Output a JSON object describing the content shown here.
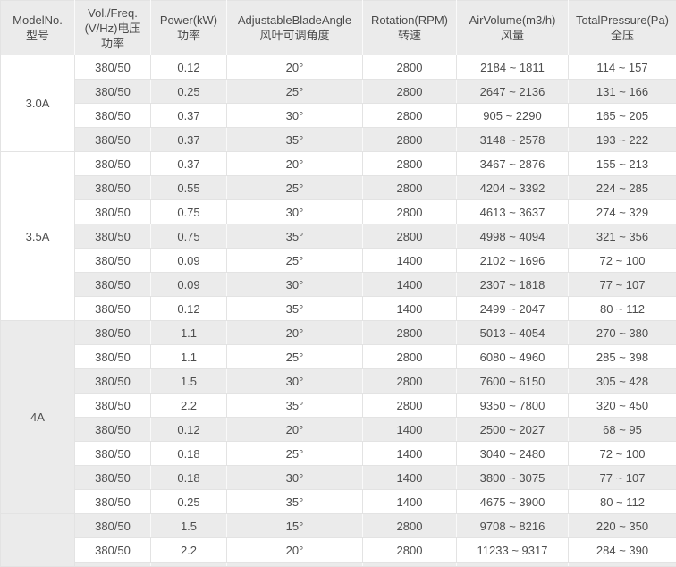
{
  "table": {
    "headers": [
      {
        "lines": [
          "ModelNo.",
          "型号"
        ]
      },
      {
        "lines": [
          "Vol./Freq.",
          "(V/Hz)电压",
          "功率"
        ]
      },
      {
        "lines": [
          "Power(kW)",
          "功率"
        ]
      },
      {
        "lines": [
          "AdjustableBladeAngle",
          "风叶可调角度"
        ]
      },
      {
        "lines": [
          "Rotation(RPM)",
          "转速"
        ]
      },
      {
        "lines": [
          "AirVolume(m3/h)",
          "风量"
        ]
      },
      {
        "lines": [
          "TotalPressure(Pa)",
          "全压"
        ]
      }
    ],
    "groups": [
      {
        "model": "3.0A",
        "rows": [
          [
            "380/50",
            "0.12",
            "20°",
            "2800",
            "2184 ~ 1811",
            "114 ~ 157"
          ],
          [
            "380/50",
            "0.25",
            "25°",
            "2800",
            "2647 ~ 2136",
            "131 ~ 166"
          ],
          [
            "380/50",
            "0.37",
            "30°",
            "2800",
            "905 ~ 2290",
            "165 ~ 205"
          ],
          [
            "380/50",
            "0.37",
            "35°",
            "2800",
            "3148 ~ 2578",
            "193 ~ 222"
          ]
        ]
      },
      {
        "model": "3.5A",
        "rows": [
          [
            "380/50",
            "0.37",
            "20°",
            "2800",
            "3467 ~ 2876",
            "155 ~ 213"
          ],
          [
            "380/50",
            "0.55",
            "25°",
            "2800",
            "4204 ~ 3392",
            "224 ~ 285"
          ],
          [
            "380/50",
            "0.75",
            "30°",
            "2800",
            "4613 ~ 3637",
            "274 ~ 329"
          ],
          [
            "380/50",
            "0.75",
            "35°",
            "2800",
            "4998 ~ 4094",
            "321 ~ 356"
          ],
          [
            "380/50",
            "0.09",
            "25°",
            "1400",
            "2102 ~ 1696",
            "72 ~ 100"
          ],
          [
            "380/50",
            "0.09",
            "30°",
            "1400",
            "2307 ~ 1818",
            "77 ~ 107"
          ],
          [
            "380/50",
            "0.12",
            "35°",
            "1400",
            "2499 ~ 2047",
            "80 ~ 112"
          ]
        ]
      },
      {
        "model": "4A",
        "rows": [
          [
            "380/50",
            "1.1",
            "20°",
            "2800",
            "5013 ~ 4054",
            "270 ~ 380"
          ],
          [
            "380/50",
            "1.1",
            "25°",
            "2800",
            "6080 ~ 4960",
            "285 ~ 398"
          ],
          [
            "380/50",
            "1.5",
            "30°",
            "2800",
            "7600 ~ 6150",
            "305 ~ 428"
          ],
          [
            "380/50",
            "2.2",
            "35°",
            "2800",
            "9350 ~ 7800",
            "320 ~ 450"
          ],
          [
            "380/50",
            "0.12",
            "20°",
            "1400",
            "2500 ~ 2027",
            "68 ~ 95"
          ],
          [
            "380/50",
            "0.18",
            "25°",
            "1400",
            "3040 ~ 2480",
            "72 ~ 100"
          ],
          [
            "380/50",
            "0.18",
            "30°",
            "1400",
            "3800 ~ 3075",
            "77 ~ 107"
          ],
          [
            "380/50",
            "0.25",
            "35°",
            "1400",
            "4675 ~ 3900",
            "80 ~ 112"
          ]
        ]
      },
      {
        "model": "",
        "rows": [
          [
            "380/50",
            "1.5",
            "15°",
            "2800",
            "9708 ~ 8216",
            "220 ~ 350"
          ],
          [
            "380/50",
            "2.2",
            "20°",
            "2800",
            "11233 ~ 9317",
            "284 ~ 390"
          ]
        ]
      }
    ],
    "colors": {
      "stripe_gray": "#ebebeb",
      "header_bg": "#ebebeb",
      "text": "#4d4d4d",
      "border": "#e3e3e3"
    }
  }
}
